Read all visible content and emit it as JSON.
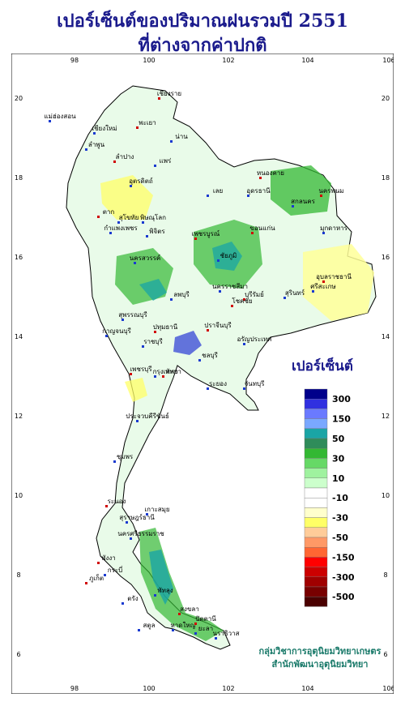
{
  "title": {
    "line1": "เปอร์เซ็นต์ของปริมาณฝนรวมปี 2551",
    "line2": "ที่ต่างจากค่าปกติ"
  },
  "axes": {
    "x_ticks": [
      "98",
      "100",
      "102",
      "104",
      "106"
    ],
    "y_ticks": [
      "20",
      "18",
      "16",
      "14",
      "12",
      "10",
      "8",
      "6"
    ]
  },
  "legend": {
    "title": "เปอร์เซ็นต์",
    "labels": [
      "300",
      "150",
      "50",
      "30",
      "10",
      "-10",
      "-30",
      "-50",
      "-150",
      "-300",
      "-500"
    ],
    "colors": [
      "#00008b",
      "#3030e0",
      "#6a7aff",
      "#7aa8ff",
      "#1aa5a5",
      "#2f8c5a",
      "#33b833",
      "#66d966",
      "#9ff29f",
      "#ccffcc",
      "#ffffff",
      "#ffffff",
      "#ffffcc",
      "#ffff66",
      "#ffcc99",
      "#ff9966",
      "#ff6633",
      "#ff0000",
      "#cc0000",
      "#a00000",
      "#780000",
      "#4a0000"
    ]
  },
  "places": [
    {
      "name": "เชียงราย"
    },
    {
      "name": "แม่ฮ่องสอน"
    },
    {
      "name": "เชียงใหม่"
    },
    {
      "name": "พะเยา"
    },
    {
      "name": "น่าน"
    },
    {
      "name": "ลำพูน"
    },
    {
      "name": "ลำปาง"
    },
    {
      "name": "แพร่"
    },
    {
      "name": "อุตรดิตถ์"
    },
    {
      "name": "ตาก"
    },
    {
      "name": "สุโขทัย"
    },
    {
      "name": "พิษณุโลก"
    },
    {
      "name": "หนองคาย"
    },
    {
      "name": "อุดรธานี"
    },
    {
      "name": "สกลนคร"
    },
    {
      "name": "นครพนม"
    },
    {
      "name": "มุกดาหาร"
    },
    {
      "name": "เลย"
    },
    {
      "name": "ขอนแก่น"
    },
    {
      "name": "กำแพงเพชร"
    },
    {
      "name": "พิจิตร"
    },
    {
      "name": "เพชรบูรณ์"
    },
    {
      "name": "ชัยภูมิ"
    },
    {
      "name": "นครสวรรค์"
    },
    {
      "name": "อุบลราชธานี"
    },
    {
      "name": "ศรีสะเกษ"
    },
    {
      "name": "สุรินทร์"
    },
    {
      "name": "บุรีรัมย์"
    },
    {
      "name": "นครราชสีมา"
    },
    {
      "name": "ลพบุรี"
    },
    {
      "name": "โชคชัย"
    },
    {
      "name": "สุพรรณบุรี"
    },
    {
      "name": "กาญจนบุรี"
    },
    {
      "name": "ปทุมธานี"
    },
    {
      "name": "ราชบุรี"
    },
    {
      "name": "กรุงเทพฯ"
    },
    {
      "name": "ปราจีนบุรี"
    },
    {
      "name": "อรัญประเทศ"
    },
    {
      "name": "ชลบุรี"
    },
    {
      "name": "พัทยา"
    },
    {
      "name": "ระยอง"
    },
    {
      "name": "จันทบุรี"
    },
    {
      "name": "เพชรบุรี"
    },
    {
      "name": "ประจวบคีรีขันธ์"
    },
    {
      "name": "ชุมพร"
    },
    {
      "name": "ระนอง"
    },
    {
      "name": "สุราษฎร์ธานี"
    },
    {
      "name": "เกาะสมุย"
    },
    {
      "name": "พังงา"
    },
    {
      "name": "นครศรีธรรมราช"
    },
    {
      "name": "กระบี่"
    },
    {
      "name": "ภูเก็ต"
    },
    {
      "name": "ตรัง"
    },
    {
      "name": "พัทลุง"
    },
    {
      "name": "สงขลา"
    },
    {
      "name": "หาดใหญ่"
    },
    {
      "name": "สตูล"
    },
    {
      "name": "ปัตตานี"
    },
    {
      "name": "นราธิวาส"
    },
    {
      "name": "ยะลา"
    }
  ],
  "credit": {
    "line1": "กลุ่มวิชาการอุตุนิยมวิทยาเกษตร",
    "line2": "สำนักพัฒนาอุตุนิยมวิทยา"
  }
}
